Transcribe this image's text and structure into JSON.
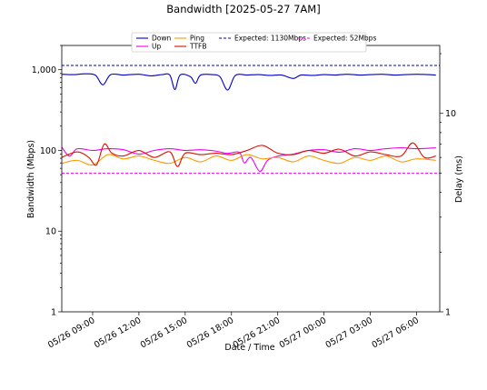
{
  "chart_data": {
    "type": "line",
    "title": "Bandwidth [2025-05-27 7AM]",
    "xlabel": "Date / Time",
    "ylabel": "Bandwidth (Mbps)",
    "y2label": "Delay (ms)",
    "y_scale": "log",
    "y2_scale": "log",
    "x_range": [
      "2025-05-26 07:00",
      "2025-05-27 07:30"
    ],
    "ylim": [
      1,
      2000
    ],
    "y2lim": [
      1,
      22
    ],
    "y_ticks": [
      {
        "value": 1,
        "label": "1"
      },
      {
        "value": 10,
        "label": "10"
      },
      {
        "value": 100,
        "label": "100"
      },
      {
        "value": 1000,
        "label": "1,000"
      }
    ],
    "y2_ticks": [
      {
        "value": 1,
        "label": "1"
      },
      {
        "value": 10,
        "label": "10"
      }
    ],
    "x_ticks": [
      {
        "time": "2025-05-26 09:00",
        "label": "05/26 09:00"
      },
      {
        "time": "2025-05-26 12:00",
        "label": "05/26 12:00"
      },
      {
        "time": "2025-05-26 15:00",
        "label": "05/26 15:00"
      },
      {
        "time": "2025-05-26 18:00",
        "label": "05/26 18:00"
      },
      {
        "time": "2025-05-26 21:00",
        "label": "05/26 21:00"
      },
      {
        "time": "2025-05-27 00:00",
        "label": "05/27 00:00"
      },
      {
        "time": "2025-05-27 03:00",
        "label": "05/27 03:00"
      },
      {
        "time": "2025-05-27 06:00",
        "label": "05/27 06:00"
      }
    ],
    "legend_position": "top-center",
    "legend": [
      {
        "name": "Down",
        "color": "#0000cc",
        "style": "solid"
      },
      {
        "name": "Up",
        "color": "#ee00ee",
        "style": "solid"
      },
      {
        "name": "Ping",
        "color": "#ff9900",
        "style": "solid"
      },
      {
        "name": "TTFB",
        "color": "#dd1100",
        "style": "solid"
      },
      {
        "name": "Expected: 1130Mbps",
        "color": "#0000aa",
        "style": "dashed"
      },
      {
        "name": "Expected: 52Mbps",
        "color": "#ee00ee",
        "style": "dashed"
      }
    ],
    "expected": [
      {
        "name": "Expected: 1130Mbps",
        "value": 1130,
        "color": "#0000aa"
      },
      {
        "name": "Expected: 52Mbps",
        "value": 52,
        "color": "#ee00ee"
      }
    ],
    "series": [
      {
        "name": "Down",
        "axis": "left",
        "color": "#0000cc",
        "points": [
          [
            "2025-05-26 07:00",
            880
          ],
          [
            "2025-05-26 07:45",
            870
          ],
          [
            "2025-05-26 08:30",
            890
          ],
          [
            "2025-05-26 09:10",
            860
          ],
          [
            "2025-05-26 09:40",
            650
          ],
          [
            "2025-05-26 10:10",
            870
          ],
          [
            "2025-05-26 11:00",
            860
          ],
          [
            "2025-05-26 12:00",
            880
          ],
          [
            "2025-05-26 12:45",
            840
          ],
          [
            "2025-05-26 13:30",
            870
          ],
          [
            "2025-05-26 14:00",
            860
          ],
          [
            "2025-05-26 14:20",
            570
          ],
          [
            "2025-05-26 14:40",
            860
          ],
          [
            "2025-05-26 15:20",
            820
          ],
          [
            "2025-05-26 15:40",
            680
          ],
          [
            "2025-05-26 16:00",
            860
          ],
          [
            "2025-05-26 16:45",
            870
          ],
          [
            "2025-05-26 17:15",
            820
          ],
          [
            "2025-05-26 17:45",
            560
          ],
          [
            "2025-05-26 18:15",
            850
          ],
          [
            "2025-05-26 19:00",
            860
          ],
          [
            "2025-05-26 19:45",
            870
          ],
          [
            "2025-05-26 20:30",
            850
          ],
          [
            "2025-05-26 21:15",
            860
          ],
          [
            "2025-05-26 22:00",
            780
          ],
          [
            "2025-05-26 22:30",
            860
          ],
          [
            "2025-05-26 23:15",
            850
          ],
          [
            "2025-05-27 00:00",
            870
          ],
          [
            "2025-05-27 00:45",
            860
          ],
          [
            "2025-05-27 01:30",
            880
          ],
          [
            "2025-05-27 02:15",
            860
          ],
          [
            "2025-05-27 03:00",
            870
          ],
          [
            "2025-05-27 03:45",
            880
          ],
          [
            "2025-05-27 04:30",
            860
          ],
          [
            "2025-05-27 05:15",
            870
          ],
          [
            "2025-05-27 06:00",
            880
          ],
          [
            "2025-05-27 06:45",
            870
          ],
          [
            "2025-05-27 07:15",
            860
          ]
        ]
      },
      {
        "name": "Up",
        "axis": "left",
        "color": "#ee00ee",
        "points": [
          [
            "2025-05-26 07:00",
            110
          ],
          [
            "2025-05-26 07:30",
            85
          ],
          [
            "2025-05-26 08:00",
            105
          ],
          [
            "2025-05-26 09:00",
            100
          ],
          [
            "2025-05-26 10:00",
            105
          ],
          [
            "2025-05-26 11:00",
            102
          ],
          [
            "2025-05-26 12:00",
            90
          ],
          [
            "2025-05-26 13:00",
            100
          ],
          [
            "2025-05-26 14:00",
            105
          ],
          [
            "2025-05-26 15:00",
            100
          ],
          [
            "2025-05-26 16:00",
            102
          ],
          [
            "2025-05-26 17:00",
            98
          ],
          [
            "2025-05-26 17:45",
            92
          ],
          [
            "2025-05-26 18:30",
            95
          ],
          [
            "2025-05-26 18:50",
            70
          ],
          [
            "2025-05-26 19:15",
            82
          ],
          [
            "2025-05-26 19:50",
            55
          ],
          [
            "2025-05-26 20:20",
            75
          ],
          [
            "2025-05-26 21:00",
            85
          ],
          [
            "2025-05-26 22:00",
            90
          ],
          [
            "2025-05-26 23:00",
            100
          ],
          [
            "2025-05-27 00:00",
            102
          ],
          [
            "2025-05-27 01:00",
            95
          ],
          [
            "2025-05-27 02:00",
            105
          ],
          [
            "2025-05-27 03:00",
            100
          ],
          [
            "2025-05-27 04:00",
            105
          ],
          [
            "2025-05-27 05:00",
            108
          ],
          [
            "2025-05-27 06:00",
            105
          ],
          [
            "2025-05-27 07:15",
            108
          ]
        ]
      },
      {
        "name": "Ping",
        "axis": "right",
        "color": "#ff9900",
        "points": [
          [
            "2025-05-26 07:00",
            5.6
          ],
          [
            "2025-05-26 08:00",
            5.8
          ],
          [
            "2025-05-26 09:00",
            5.5
          ],
          [
            "2025-05-26 10:00",
            6.2
          ],
          [
            "2025-05-26 11:00",
            5.9
          ],
          [
            "2025-05-26 12:00",
            6.1
          ],
          [
            "2025-05-26 13:00",
            5.8
          ],
          [
            "2025-05-26 14:00",
            5.6
          ],
          [
            "2025-05-26 15:00",
            6.0
          ],
          [
            "2025-05-26 16:00",
            5.7
          ],
          [
            "2025-05-26 17:00",
            6.1
          ],
          [
            "2025-05-26 18:00",
            5.8
          ],
          [
            "2025-05-26 19:00",
            6.2
          ],
          [
            "2025-05-26 20:00",
            5.9
          ],
          [
            "2025-05-26 21:00",
            6.0
          ],
          [
            "2025-05-26 22:00",
            5.7
          ],
          [
            "2025-05-26 23:00",
            6.1
          ],
          [
            "2025-05-27 00:00",
            5.8
          ],
          [
            "2025-05-27 01:00",
            5.6
          ],
          [
            "2025-05-27 02:00",
            6.0
          ],
          [
            "2025-05-27 03:00",
            5.8
          ],
          [
            "2025-05-27 04:00",
            6.1
          ],
          [
            "2025-05-27 05:00",
            5.7
          ],
          [
            "2025-05-27 06:00",
            5.9
          ],
          [
            "2025-05-27 07:15",
            5.8
          ]
        ]
      },
      {
        "name": "TTFB",
        "axis": "right",
        "color": "#dd1100",
        "points": [
          [
            "2025-05-26 07:00",
            6.0
          ],
          [
            "2025-05-26 08:00",
            6.4
          ],
          [
            "2025-05-26 08:45",
            6.0
          ],
          [
            "2025-05-26 09:15",
            5.5
          ],
          [
            "2025-05-26 09:45",
            7.0
          ],
          [
            "2025-05-26 10:15",
            6.3
          ],
          [
            "2025-05-26 11:00",
            6.1
          ],
          [
            "2025-05-26 12:00",
            6.5
          ],
          [
            "2025-05-26 13:00",
            6.0
          ],
          [
            "2025-05-26 14:00",
            6.4
          ],
          [
            "2025-05-26 14:30",
            5.4
          ],
          [
            "2025-05-26 15:00",
            6.3
          ],
          [
            "2025-05-26 16:00",
            6.2
          ],
          [
            "2025-05-26 17:00",
            6.3
          ],
          [
            "2025-05-26 18:00",
            6.2
          ],
          [
            "2025-05-26 19:00",
            6.5
          ],
          [
            "2025-05-26 20:00",
            6.9
          ],
          [
            "2025-05-26 21:00",
            6.3
          ],
          [
            "2025-05-26 22:00",
            6.2
          ],
          [
            "2025-05-26 23:00",
            6.5
          ],
          [
            "2025-05-27 00:00",
            6.3
          ],
          [
            "2025-05-27 01:00",
            6.6
          ],
          [
            "2025-05-27 02:00",
            6.1
          ],
          [
            "2025-05-27 03:00",
            6.4
          ],
          [
            "2025-05-27 04:00",
            6.2
          ],
          [
            "2025-05-27 05:00",
            6.1
          ],
          [
            "2025-05-27 05:45",
            7.1
          ],
          [
            "2025-05-27 06:30",
            6.0
          ],
          [
            "2025-05-27 07:15",
            6.1
          ]
        ]
      }
    ]
  }
}
